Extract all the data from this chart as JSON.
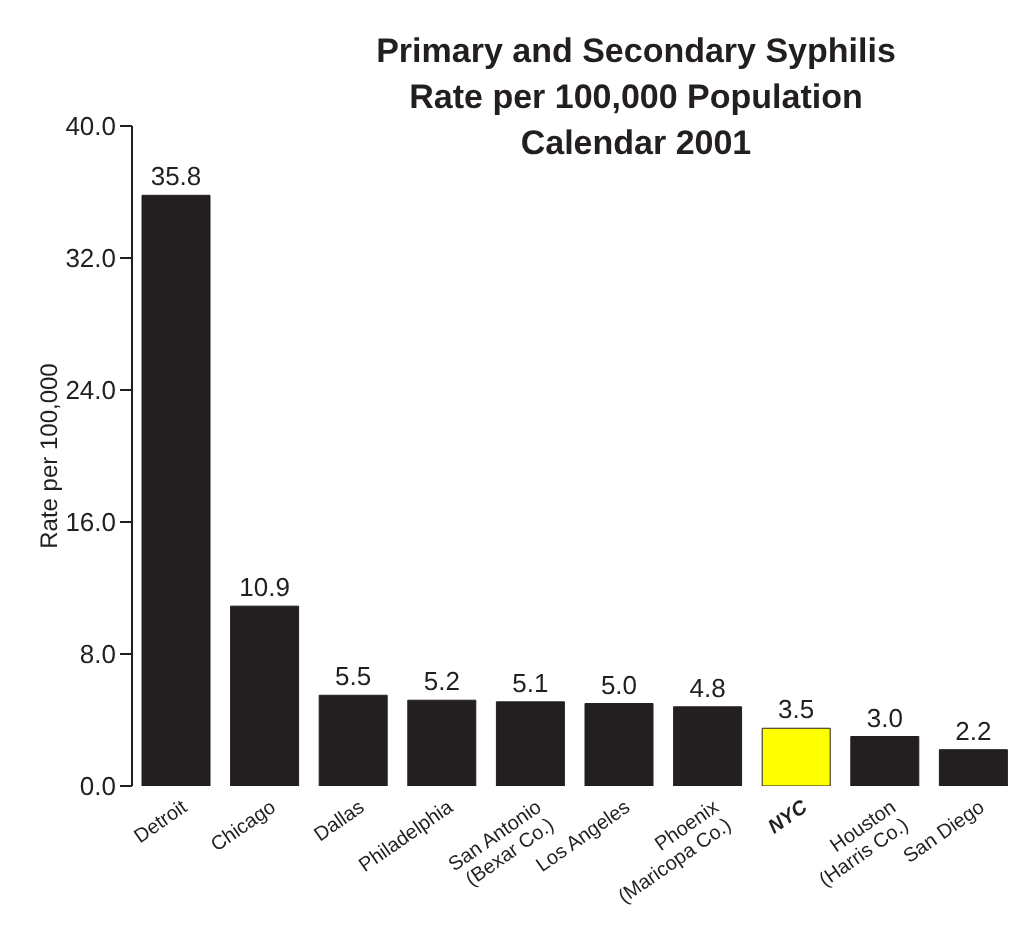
{
  "chart_data": {
    "type": "bar",
    "title": "Primary and Secondary Syphilis\nRate per 100,000 Population\nCalendar 2001",
    "ylabel": "Rate per 100,000",
    "categories": [
      "Detroit",
      "Chicago",
      "Dallas",
      "Philadelphia",
      "San Antonio\n(Bexar Co.)",
      "Los Angeles",
      "Phoenix\n(Maricopa Co.)",
      "NYC",
      "Houston\n(Harris Co.)",
      "San Diego"
    ],
    "values": [
      35.8,
      10.9,
      5.5,
      5.2,
      5.1,
      5.0,
      4.8,
      3.5,
      3.0,
      2.2
    ],
    "value_labels": [
      "35.8",
      "10.9",
      "5.5",
      "5.2",
      "5.1",
      "5.0",
      "4.8",
      "3.5",
      "3.0",
      "2.2"
    ],
    "colors": [
      "#231f20",
      "#231f20",
      "#231f20",
      "#231f20",
      "#231f20",
      "#231f20",
      "#231f20",
      "#ffff00",
      "#231f20",
      "#231f20"
    ],
    "ylim": [
      0,
      40
    ],
    "yticks": [
      {
        "value": 0,
        "label": "0.0"
      },
      {
        "value": 8,
        "label": "8.0"
      },
      {
        "value": 16,
        "label": "16.0"
      },
      {
        "value": 24,
        "label": "24.0"
      },
      {
        "value": 32,
        "label": "32.0"
      },
      {
        "value": 40,
        "label": "40.0"
      }
    ],
    "grid": false,
    "legend": false
  }
}
